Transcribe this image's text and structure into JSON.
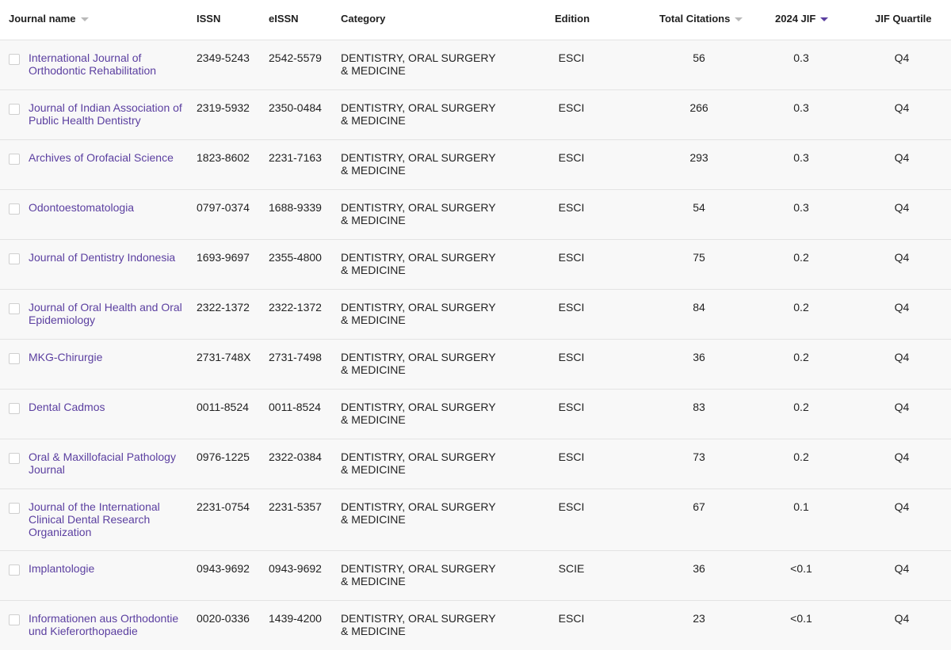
{
  "header": {
    "journal_name": "Journal name",
    "issn": "ISSN",
    "eissn": "eISSN",
    "category": "Category",
    "edition": "Edition",
    "total_citations": "Total Citations",
    "jif": "2024 JIF",
    "quartile": "JIF Quartile"
  },
  "colors": {
    "link": "#5b3fa0",
    "sort_active": "#5b3fa0",
    "sort_inactive": "#b9b9b9"
  },
  "rows": [
    {
      "name": "International Journal of Orthodontic Rehabilitation",
      "issn": "2349-5243",
      "eissn": "2542-5579",
      "category": "DENTISTRY, ORAL SURGERY & MEDICINE",
      "edition": "ESCI",
      "citations": "56",
      "jif": "0.3",
      "quartile": "Q4"
    },
    {
      "name": "Journal of Indian Association of Public Health Dentistry",
      "issn": "2319-5932",
      "eissn": "2350-0484",
      "category": "DENTISTRY, ORAL SURGERY & MEDICINE",
      "edition": "ESCI",
      "citations": "266",
      "jif": "0.3",
      "quartile": "Q4"
    },
    {
      "name": "Archives of Orofacial Science",
      "issn": "1823-8602",
      "eissn": "2231-7163",
      "category": "DENTISTRY, ORAL SURGERY & MEDICINE",
      "edition": "ESCI",
      "citations": "293",
      "jif": "0.3",
      "quartile": "Q4"
    },
    {
      "name": "Odontoestomatologia",
      "issn": "0797-0374",
      "eissn": "1688-9339",
      "category": "DENTISTRY, ORAL SURGERY & MEDICINE",
      "edition": "ESCI",
      "citations": "54",
      "jif": "0.3",
      "quartile": "Q4"
    },
    {
      "name": "Journal of Dentistry Indonesia",
      "issn": "1693-9697",
      "eissn": "2355-4800",
      "category": "DENTISTRY, ORAL SURGERY & MEDICINE",
      "edition": "ESCI",
      "citations": "75",
      "jif": "0.2",
      "quartile": "Q4"
    },
    {
      "name": "Journal of Oral Health and Oral Epidemiology",
      "issn": "2322-1372",
      "eissn": "2322-1372",
      "category": "DENTISTRY, ORAL SURGERY & MEDICINE",
      "edition": "ESCI",
      "citations": "84",
      "jif": "0.2",
      "quartile": "Q4"
    },
    {
      "name": "MKG-Chirurgie",
      "issn": "2731-748X",
      "eissn": "2731-7498",
      "category": "DENTISTRY, ORAL SURGERY & MEDICINE",
      "edition": "ESCI",
      "citations": "36",
      "jif": "0.2",
      "quartile": "Q4"
    },
    {
      "name": "Dental Cadmos",
      "issn": "0011-8524",
      "eissn": "0011-8524",
      "category": "DENTISTRY, ORAL SURGERY & MEDICINE",
      "edition": "ESCI",
      "citations": "83",
      "jif": "0.2",
      "quartile": "Q4"
    },
    {
      "name": "Oral & Maxillofacial Pathology Journal",
      "issn": "0976-1225",
      "eissn": "2322-0384",
      "category": "DENTISTRY, ORAL SURGERY & MEDICINE",
      "edition": "ESCI",
      "citations": "73",
      "jif": "0.2",
      "quartile": "Q4"
    },
    {
      "name": "Journal of the International Clinical Dental Research Organization",
      "issn": "2231-0754",
      "eissn": "2231-5357",
      "category": "DENTISTRY, ORAL SURGERY & MEDICINE",
      "edition": "ESCI",
      "citations": "67",
      "jif": "0.1",
      "quartile": "Q4"
    },
    {
      "name": "Implantologie",
      "issn": "0943-9692",
      "eissn": "0943-9692",
      "category": "DENTISTRY, ORAL SURGERY & MEDICINE",
      "edition": "SCIE",
      "citations": "36",
      "jif": "<0.1",
      "quartile": "Q4"
    },
    {
      "name": "Informationen aus Orthodontie und Kieferorthopaedie",
      "issn": "0020-0336",
      "eissn": "1439-4200",
      "category": "DENTISTRY, ORAL SURGERY & MEDICINE",
      "edition": "ESCI",
      "citations": "23",
      "jif": "<0.1",
      "quartile": "Q4"
    }
  ]
}
